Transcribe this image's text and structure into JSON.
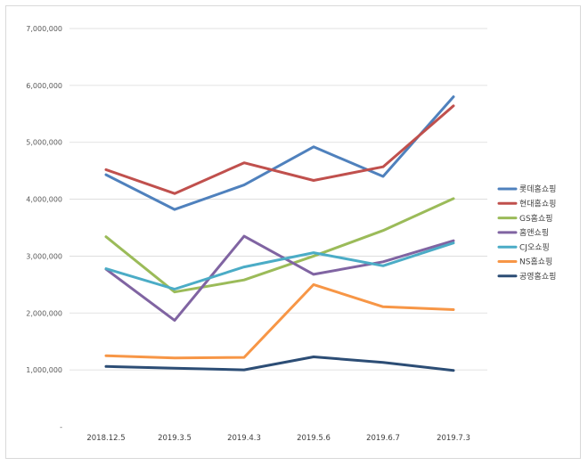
{
  "chart_data": {
    "type": "line",
    "title": "",
    "xlabel": "",
    "ylabel": "",
    "categories": [
      "2018.12.5",
      "2019.3.5",
      "2019.4.3",
      "2019.5.6",
      "2019.6.7",
      "2019.7.3"
    ],
    "ylim": [
      0,
      7000000
    ],
    "yticks": [
      0,
      1000000,
      2000000,
      3000000,
      4000000,
      5000000,
      6000000,
      7000000
    ],
    "ytick_labels": [
      "-",
      "1,000,000",
      "2,000,000",
      "3,000,000",
      "4,000,000",
      "5,000,000",
      "6,000,000",
      "7,000,000"
    ],
    "grid": true,
    "legend": "right",
    "series": [
      {
        "name": "롯데홈쇼핑",
        "color": "#4f81bd",
        "values": [
          4430000,
          3820000,
          4250000,
          4920000,
          4400000,
          5800000
        ]
      },
      {
        "name": "현대홈쇼핑",
        "color": "#c0504d",
        "values": [
          4520000,
          4100000,
          4640000,
          4330000,
          4570000,
          5640000
        ]
      },
      {
        "name": "GS홈쇼핑",
        "color": "#9bbb59",
        "values": [
          3340000,
          2370000,
          2580000,
          3000000,
          3450000,
          4010000
        ]
      },
      {
        "name": "홈앤쇼핑",
        "color": "#8064a2",
        "values": [
          2770000,
          1870000,
          3350000,
          2680000,
          2900000,
          3270000
        ]
      },
      {
        "name": "CJ오쇼핑",
        "color": "#4bacc6",
        "values": [
          2780000,
          2420000,
          2810000,
          3060000,
          2830000,
          3230000
        ]
      },
      {
        "name": "NS홈쇼핑",
        "color": "#f79646",
        "values": [
          1250000,
          1210000,
          1220000,
          2500000,
          2110000,
          2060000
        ]
      },
      {
        "name": "공영홈쇼핑",
        "color": "#2c4d75",
        "values": [
          1060000,
          1030000,
          1000000,
          1230000,
          1130000,
          990000
        ]
      }
    ]
  }
}
